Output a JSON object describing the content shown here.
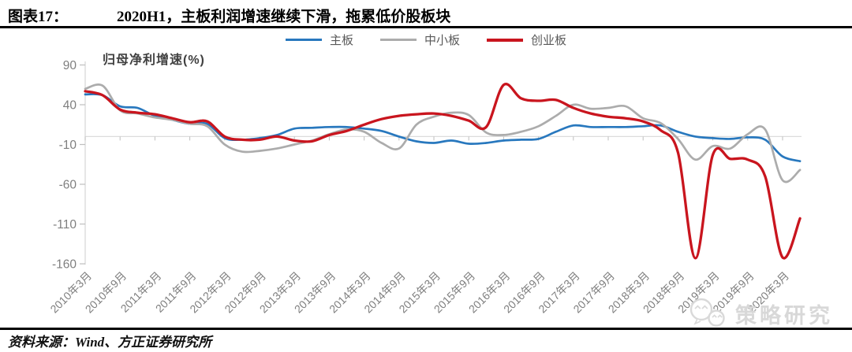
{
  "header": {
    "label": "图表17：",
    "title": "2020H1，主板利润增速继续下滑，拖累低价股板块"
  },
  "chart_data": {
    "type": "line",
    "axis_title": "归母净利增速(%)",
    "frequency": "quarterly",
    "points_per_label": 2,
    "categories": [
      "2010年3月",
      "2010年9月",
      "2011年3月",
      "2011年9月",
      "2012年3月",
      "2012年9月",
      "2013年3月",
      "2013年9月",
      "2014年3月",
      "2014年9月",
      "2015年3月",
      "2015年9月",
      "2016年3月",
      "2016年9月",
      "2017年3月",
      "2017年9月",
      "2018年3月",
      "2018年9月",
      "2019年3月",
      "2019年9月",
      "2020年3月"
    ],
    "ylim": [
      -160,
      90
    ],
    "yticks": [
      90,
      40,
      -10,
      -60,
      -110,
      -160
    ],
    "zero_line": true,
    "legend_position": "top",
    "series": [
      {
        "name": "主板",
        "color": "#2878BE",
        "values": [
          53,
          52,
          38,
          36,
          26,
          21,
          16,
          16,
          -2,
          -4,
          -2,
          2,
          10,
          11,
          12,
          12,
          10,
          7,
          0,
          -6,
          -8,
          -5,
          -9,
          -8,
          -5,
          -4,
          -3,
          6,
          14,
          12,
          12,
          12,
          13,
          14,
          6,
          0,
          -2,
          -3,
          -1,
          -4,
          -25,
          -31
        ]
      },
      {
        "name": "中小板",
        "color": "#ACACAC",
        "values": [
          60,
          64,
          33,
          29,
          24,
          21,
          16,
          13,
          -10,
          -19,
          -18,
          -15,
          -10,
          -5,
          3,
          9,
          6,
          -8,
          -15,
          15,
          25,
          30,
          27,
          5,
          2,
          6,
          13,
          26,
          40,
          35,
          36,
          38,
          23,
          17,
          -3,
          -29,
          -12,
          -15,
          3,
          9,
          -55,
          -42
        ]
      },
      {
        "name": "创业板",
        "color": "#C9151E",
        "values": [
          57,
          52,
          34,
          30,
          28,
          23,
          18,
          19,
          0,
          -4,
          -4,
          0,
          -5,
          -6,
          2,
          7,
          15,
          22,
          26,
          28,
          29,
          26,
          20,
          12,
          65,
          48,
          45,
          46,
          36,
          29,
          25,
          23,
          19,
          8,
          -20,
          -153,
          -23,
          -28,
          -29,
          -50,
          -152,
          -103
        ]
      }
    ],
    "colors": {
      "axis_line": "#D9D9D9",
      "zero_line": "#DCDCDC",
      "tick": "#BFBFBF",
      "tick_label": "#7F7F7F"
    }
  },
  "footer": {
    "source": "资料来源：Wind、方正证券研究所"
  },
  "watermark": {
    "text": "策略研究"
  }
}
